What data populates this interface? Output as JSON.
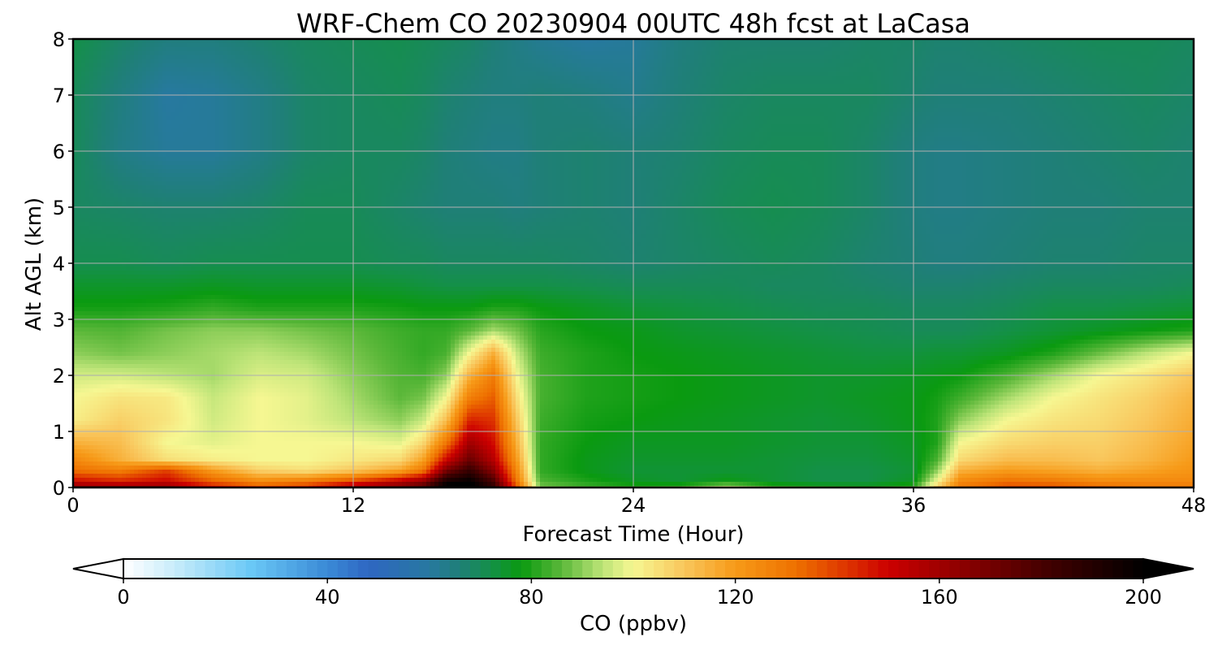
{
  "chart_data": {
    "type": "heatmap",
    "title": "WRF-Chem CO  20230904 00UTC 48h fcst at LaCasa",
    "xlabel": "Forecast Time (Hour)",
    "ylabel": "Alt AGL (km)",
    "xlim": [
      0,
      48
    ],
    "ylim": [
      0,
      8
    ],
    "x_ticks": [
      "0",
      "12",
      "24",
      "36",
      "48"
    ],
    "y_ticks": [
      "0",
      "1",
      "2",
      "3",
      "4",
      "5",
      "6",
      "7",
      "8"
    ],
    "grid": true,
    "x": [
      0,
      2,
      4,
      6,
      8,
      10,
      12,
      14,
      15,
      16,
      17,
      18,
      19,
      20,
      22,
      24,
      26,
      28,
      30,
      32,
      34,
      36,
      37,
      38,
      40,
      42,
      44,
      46,
      48
    ],
    "y": [
      0,
      0.1,
      0.3,
      0.5,
      0.8,
      1.2,
      1.6,
      2.0,
      2.4,
      2.8,
      3.2,
      3.6,
      4.0,
      5.0,
      6.0,
      7.0,
      8.0
    ],
    "z": [
      [
        170,
        170,
        170,
        150,
        140,
        145,
        165,
        172,
        180,
        205,
        205,
        190,
        140,
        90,
        84,
        82,
        85,
        97,
        85,
        82,
        80,
        84,
        110,
        130,
        140,
        140,
        135,
        130,
        130
      ],
      [
        150,
        145,
        150,
        135,
        125,
        130,
        140,
        155,
        165,
        195,
        200,
        180,
        130,
        85,
        80,
        76,
        74,
        78,
        74,
        72,
        72,
        76,
        100,
        125,
        132,
        130,
        125,
        125,
        125
      ],
      [
        132,
        128,
        140,
        120,
        108,
        105,
        110,
        118,
        130,
        170,
        185,
        165,
        125,
        82,
        77,
        74,
        74,
        74,
        74,
        72,
        72,
        74,
        90,
        115,
        120,
        118,
        115,
        118,
        122
      ],
      [
        125,
        115,
        105,
        102,
        100,
        100,
        103,
        106,
        118,
        150,
        172,
        155,
        120,
        82,
        77,
        75,
        75,
        75,
        74,
        73,
        73,
        75,
        84,
        106,
        112,
        112,
        110,
        114,
        120
      ],
      [
        115,
        112,
        100,
        98,
        100,
        100,
        100,
        98,
        106,
        130,
        160,
        148,
        115,
        82,
        78,
        76,
        76,
        76,
        75,
        74,
        74,
        76,
        80,
        100,
        106,
        108,
        108,
        112,
        118
      ],
      [
        102,
        108,
        104,
        96,
        100,
        98,
        94,
        90,
        95,
        112,
        145,
        142,
        110,
        83,
        79,
        78,
        77,
        76,
        75,
        74,
        75,
        77,
        80,
        90,
        100,
        104,
        106,
        110,
        116
      ],
      [
        100,
        104,
        103,
        95,
        100,
        98,
        92,
        86,
        88,
        100,
        128,
        135,
        105,
        84,
        80,
        79,
        78,
        77,
        76,
        75,
        76,
        77,
        79,
        83,
        92,
        100,
        104,
        108,
        114
      ],
      [
        96,
        96,
        94,
        92,
        97,
        96,
        90,
        85,
        84,
        90,
        115,
        128,
        100,
        84,
        80,
        79,
        78,
        77,
        76,
        75,
        75,
        76,
        77,
        78,
        84,
        92,
        100,
        104,
        110
      ],
      [
        90,
        88,
        90,
        92,
        94,
        92,
        88,
        84,
        82,
        84,
        100,
        115,
        95,
        83,
        80,
        78,
        77,
        76,
        75,
        74,
        73,
        73,
        74,
        74,
        76,
        80,
        87,
        94,
        100
      ],
      [
        86,
        85,
        88,
        90,
        90,
        88,
        86,
        83,
        82,
        82,
        86,
        92,
        88,
        81,
        78,
        77,
        75,
        74,
        73,
        72,
        71,
        70,
        70,
        70,
        72,
        74,
        76,
        78,
        80
      ],
      [
        79,
        79,
        80,
        82,
        80,
        80,
        80,
        79,
        78,
        78,
        78,
        80,
        80,
        78,
        76,
        74,
        73,
        72,
        71,
        70,
        70,
        69,
        69,
        69,
        70,
        72,
        72,
        73,
        74
      ],
      [
        75,
        75,
        75,
        76,
        75,
        75,
        75,
        74,
        73,
        72,
        72,
        72,
        72,
        72,
        71,
        70,
        70,
        70,
        69,
        69,
        68,
        67,
        67,
        67,
        68,
        69,
        69,
        69,
        70
      ],
      [
        71,
        71,
        70,
        71,
        71,
        71,
        71,
        70,
        70,
        69,
        69,
        69,
        69,
        69,
        68,
        67,
        68,
        69,
        70,
        69,
        67,
        66,
        65,
        65,
        66,
        67,
        67,
        68,
        68
      ],
      [
        69,
        68,
        67,
        67,
        68,
        70,
        70,
        68,
        67,
        66,
        66,
        66,
        65,
        66,
        67,
        66,
        68,
        70,
        71,
        70,
        68,
        65,
        64,
        64,
        65,
        66,
        66,
        67,
        67
      ],
      [
        70,
        64,
        61,
        61,
        64,
        68,
        69,
        69,
        68,
        66,
        65,
        64,
        64,
        66,
        67,
        66,
        67,
        69,
        70,
        70,
        68,
        65,
        64,
        64,
        65,
        66,
        67,
        68,
        67
      ],
      [
        70,
        65,
        60,
        61,
        64,
        68,
        69,
        70,
        69,
        67,
        66,
        65,
        65,
        66,
        65,
        63,
        66,
        68,
        69,
        69,
        69,
        67,
        66,
        66,
        66,
        67,
        68,
        69,
        68
      ],
      [
        72,
        68,
        65,
        65,
        67,
        69,
        70,
        71,
        70,
        69,
        68,
        66,
        64,
        62,
        60,
        61,
        65,
        67,
        67,
        67,
        68,
        68,
        67,
        67,
        68,
        69,
        70,
        70,
        69
      ]
    ],
    "colorbar": {
      "label": "CO  (ppbv)",
      "min": 0,
      "max": 200,
      "ticks": [
        "0",
        "40",
        "80",
        "120",
        "160",
        "200"
      ],
      "extend": "both",
      "colors": [
        {
          "v": 0,
          "c": "#ffffff"
        },
        {
          "v": 10,
          "c": "#c8ecfa"
        },
        {
          "v": 25,
          "c": "#6ac8f6"
        },
        {
          "v": 40,
          "c": "#3a8ad6"
        },
        {
          "v": 48,
          "c": "#2f66c2"
        },
        {
          "v": 60,
          "c": "#2779a0"
        },
        {
          "v": 66,
          "c": "#1f7f77"
        },
        {
          "v": 72,
          "c": "#149048"
        },
        {
          "v": 78,
          "c": "#0a9a10"
        },
        {
          "v": 86,
          "c": "#5cb83a"
        },
        {
          "v": 94,
          "c": "#bde478"
        },
        {
          "v": 100,
          "c": "#f6f792"
        },
        {
          "v": 110,
          "c": "#f9c65c"
        },
        {
          "v": 120,
          "c": "#f79a18"
        },
        {
          "v": 132,
          "c": "#ee7000"
        },
        {
          "v": 142,
          "c": "#dd3300"
        },
        {
          "v": 150,
          "c": "#cc0000"
        },
        {
          "v": 165,
          "c": "#8a0000"
        },
        {
          "v": 180,
          "c": "#460000"
        },
        {
          "v": 200,
          "c": "#000000"
        }
      ]
    }
  }
}
